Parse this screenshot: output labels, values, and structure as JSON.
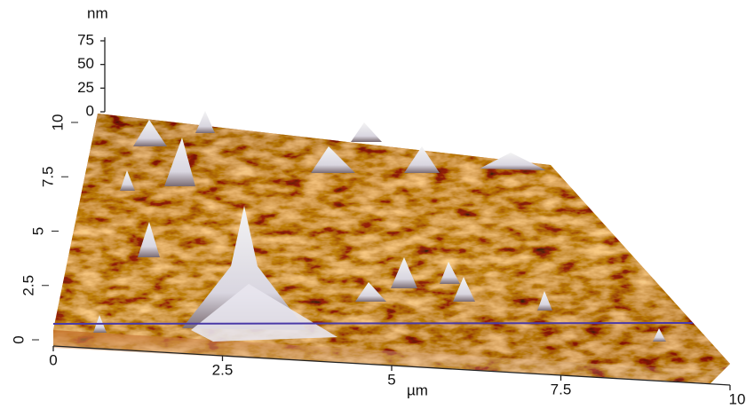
{
  "chart_data": {
    "type": "surface",
    "zlabel": "nm",
    "xlabel": "µm",
    "xlim": [
      0,
      10
    ],
    "xticks": [
      0,
      2.5,
      5,
      7.5,
      10
    ],
    "ylim": [
      0,
      10
    ],
    "yticks": [
      0,
      2.5,
      5,
      7.5,
      10
    ],
    "zlim": [
      0,
      75
    ],
    "zticks": [
      0,
      25,
      50,
      75
    ]
  }
}
